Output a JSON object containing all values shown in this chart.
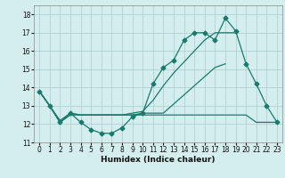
{
  "xlabel": "Humidex (Indice chaleur)",
  "x_values": [
    0,
    1,
    2,
    3,
    4,
    5,
    6,
    7,
    8,
    9,
    10,
    11,
    12,
    13,
    14,
    15,
    16,
    17,
    18,
    19,
    20,
    21,
    22,
    23
  ],
  "series1_y": [
    13.8,
    13.0,
    12.1,
    12.6,
    12.1,
    11.7,
    11.5,
    11.5,
    11.8,
    12.4,
    12.6,
    14.2,
    15.1,
    15.5,
    16.6,
    17.0,
    17.0,
    16.6,
    17.8,
    17.1,
    15.3,
    14.2,
    13.0,
    12.1
  ],
  "series2_y": [
    13.8,
    13.0,
    12.1,
    12.5,
    12.5,
    12.5,
    12.5,
    12.5,
    12.5,
    12.5,
    12.5,
    12.5,
    12.5,
    12.5,
    12.5,
    12.5,
    12.5,
    12.5,
    12.5,
    12.5,
    12.5,
    12.1,
    12.1,
    12.1
  ],
  "series3_y": [
    13.8,
    13.0,
    12.1,
    12.6,
    12.5,
    12.5,
    12.5,
    12.5,
    12.5,
    12.5,
    12.6,
    12.6,
    12.6,
    13.1,
    13.6,
    14.1,
    14.6,
    15.1,
    15.3,
    null,
    null,
    null,
    null,
    null
  ],
  "series4_y": [
    13.8,
    13.0,
    12.2,
    12.6,
    12.5,
    12.5,
    12.5,
    12.5,
    12.5,
    12.6,
    12.7,
    13.3,
    14.1,
    14.8,
    15.4,
    16.0,
    16.6,
    17.0,
    17.0,
    17.0,
    null,
    null,
    null,
    null
  ],
  "line_color": "#1a7a6e",
  "bg_color": "#d4eeee",
  "grid_color": "#aacccc",
  "ylim": [
    11,
    18.5
  ],
  "yticks": [
    11,
    12,
    13,
    14,
    15,
    16,
    17,
    18
  ],
  "xlim": [
    -0.5,
    23.5
  ],
  "xticks": [
    0,
    1,
    2,
    3,
    4,
    5,
    6,
    7,
    8,
    9,
    10,
    11,
    12,
    13,
    14,
    15,
    16,
    17,
    18,
    19,
    20,
    21,
    22,
    23
  ],
  "tick_fontsize": 5.5,
  "xlabel_fontsize": 6.5
}
